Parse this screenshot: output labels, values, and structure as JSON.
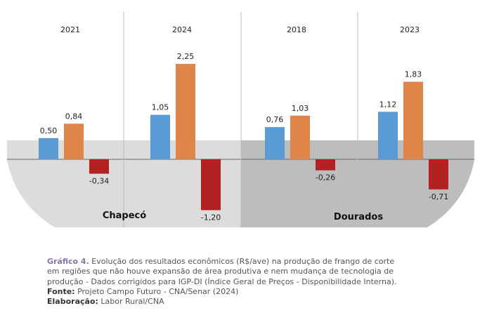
{
  "chart_data": {
    "type": "bar",
    "panels": [
      {
        "year": "2021",
        "values": [
          0.5,
          0.84,
          -0.34
        ],
        "labels": [
          "0,50",
          "0,84",
          "-0,34"
        ]
      },
      {
        "year": "2024",
        "values": [
          1.05,
          2.25,
          -1.2
        ],
        "labels": [
          "1,05",
          "2,25",
          "-1,20"
        ]
      },
      {
        "year": "2018",
        "values": [
          0.76,
          1.03,
          -0.26
        ],
        "labels": [
          "0,76",
          "1,03",
          "-0,26"
        ]
      },
      {
        "year": "2023",
        "values": [
          1.12,
          1.83,
          -0.71
        ],
        "labels": [
          "1,12",
          "1,83",
          "-0,71"
        ]
      }
    ],
    "regions": [
      "Chapecó",
      "Dourados"
    ],
    "series_colors": [
      "#5b9bd5",
      "#e0854a",
      "#b22222"
    ]
  },
  "caption": {
    "label": "Gráfico 4.",
    "text_line1": " Evolução dos resultados econômicos (R$/ave) na produção de frango de corte",
    "text_line2": "em regiões que não houve expansão de área produtiva e nem mudança de tecnologia de",
    "text_line3": "produção - Dados corrigidos para IGP-DI (Índice Geral de Preços - Disponibilidade Interna).",
    "source_label": "Fonte:",
    "source_text": " Projeto Campo Futuro - CNA/Senar (2024)",
    "elaboration_label": "Elaboração:",
    "elaboration_text": " Labor Rural/CNA"
  }
}
